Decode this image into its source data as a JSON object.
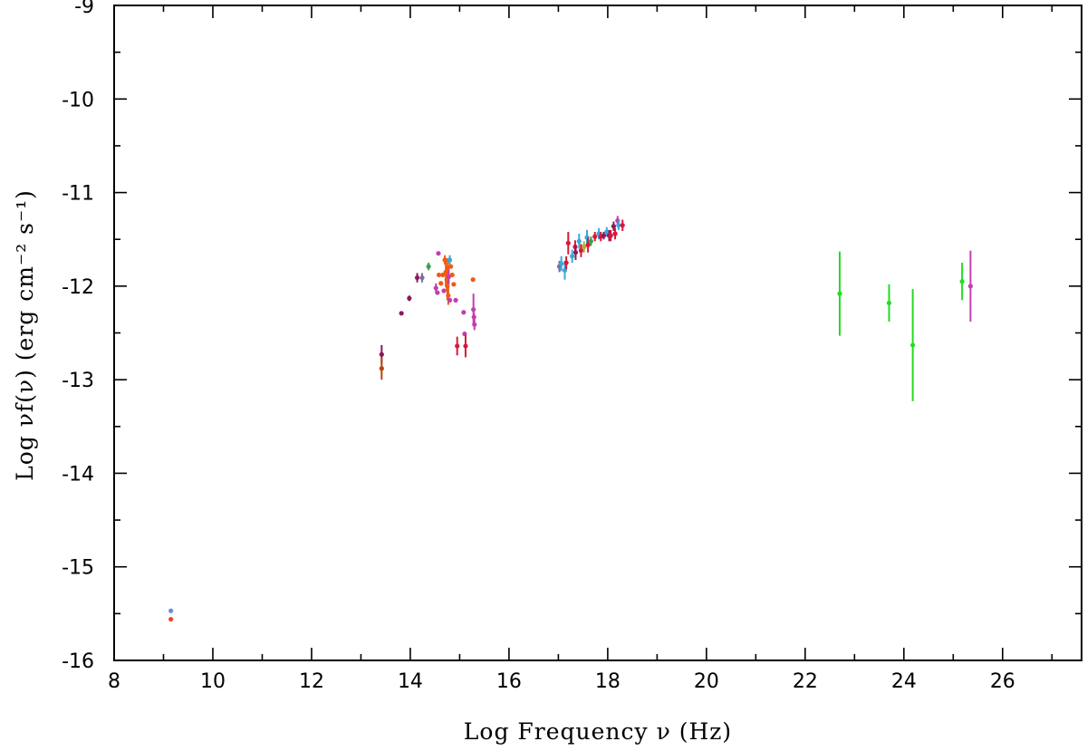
{
  "chart_data": {
    "type": "scatter",
    "title": "",
    "xlabel": "Log Frequency ν (Hz)",
    "ylabel": "Log νf(ν) (erg cm⁻² s⁻¹)",
    "xlim": [
      8,
      27.6
    ],
    "ylim": [
      -16,
      -9
    ],
    "x_major_ticks": [
      8,
      10,
      12,
      14,
      16,
      18,
      20,
      22,
      24,
      26
    ],
    "y_major_ticks": [
      -16,
      -15,
      -14,
      -13,
      -12,
      -11,
      -10,
      -9
    ],
    "x_minor_step": 1,
    "y_minor_step": 0.5,
    "grid": false,
    "points": [
      {
        "x": 9.15,
        "y": -15.47,
        "color": "#6a8fd8",
        "yerr": 0
      },
      {
        "x": 9.15,
        "y": -15.56,
        "color": "#e8452a",
        "yerr": 0
      },
      {
        "x": 13.42,
        "y": -12.73,
        "color": "#8b1a5a",
        "yerr": 0.1
      },
      {
        "x": 13.42,
        "y": -12.88,
        "color": "#b8440f",
        "yerr": 0.12
      },
      {
        "x": 13.82,
        "y": -12.29,
        "color": "#8b1a5a",
        "yerr": 0
      },
      {
        "x": 13.98,
        "y": -12.13,
        "color": "#8b1a5a",
        "yerr": 0.03
      },
      {
        "x": 14.14,
        "y": -11.91,
        "color": "#8b1a5a",
        "yerr": 0.05
      },
      {
        "x": 14.24,
        "y": -11.91,
        "color": "#7a6aa8",
        "yerr": 0.05
      },
      {
        "x": 14.37,
        "y": -11.79,
        "color": "#3aa050",
        "yerr": 0.04
      },
      {
        "x": 14.52,
        "y": -12.02,
        "color": "#c040b0",
        "yerr": 0.05
      },
      {
        "x": 14.55,
        "y": -12.07,
        "color": "#c040b0",
        "yerr": 0
      },
      {
        "x": 14.57,
        "y": -11.65,
        "color": "#c040b0",
        "yerr": 0
      },
      {
        "x": 14.58,
        "y": -11.88,
        "color": "#f05a14",
        "yerr": 0
      },
      {
        "x": 14.62,
        "y": -11.97,
        "color": "#f05a14",
        "yerr": 0
      },
      {
        "x": 14.66,
        "y": -11.88,
        "color": "#f05a14",
        "yerr": 0
      },
      {
        "x": 14.68,
        "y": -12.05,
        "color": "#c040b0",
        "yerr": 0
      },
      {
        "x": 14.7,
        "y": -11.72,
        "color": "#f05a14",
        "yerr": 0.05
      },
      {
        "x": 14.72,
        "y": -11.85,
        "color": "#f05a14",
        "yerr": 0.15
      },
      {
        "x": 14.74,
        "y": -11.93,
        "color": "#f05a14",
        "yerr": 0.12
      },
      {
        "x": 14.75,
        "y": -12.0,
        "color": "#f05a14",
        "yerr": 0.15
      },
      {
        "x": 14.76,
        "y": -11.8,
        "color": "#f05a14",
        "yerr": 0.1
      },
      {
        "x": 14.77,
        "y": -12.1,
        "color": "#f05a14",
        "yerr": 0.1
      },
      {
        "x": 14.78,
        "y": -11.9,
        "color": "#c040b0",
        "yerr": 0.08
      },
      {
        "x": 14.8,
        "y": -11.72,
        "color": "#38a8d8",
        "yerr": 0.05
      },
      {
        "x": 14.82,
        "y": -11.79,
        "color": "#f05a14",
        "yerr": 0
      },
      {
        "x": 14.8,
        "y": -12.15,
        "color": "#c040b0",
        "yerr": 0
      },
      {
        "x": 14.85,
        "y": -11.88,
        "color": "#f05a14",
        "yerr": 0
      },
      {
        "x": 14.88,
        "y": -11.98,
        "color": "#f05a14",
        "yerr": 0
      },
      {
        "x": 14.92,
        "y": -12.15,
        "color": "#c040b0",
        "yerr": 0
      },
      {
        "x": 14.95,
        "y": -12.64,
        "color": "#d8183a",
        "yerr": 0.1
      },
      {
        "x": 15.08,
        "y": -12.28,
        "color": "#c040b0",
        "yerr": 0
      },
      {
        "x": 15.1,
        "y": -12.51,
        "color": "#c040b0",
        "yerr": 0
      },
      {
        "x": 15.12,
        "y": -12.64,
        "color": "#d8183a",
        "yerr": 0.12
      },
      {
        "x": 15.27,
        "y": -11.93,
        "color": "#f05a14",
        "yerr": 0
      },
      {
        "x": 15.28,
        "y": -12.25,
        "color": "#c040b0",
        "yerr": 0.17
      },
      {
        "x": 15.29,
        "y": -12.33,
        "color": "#c040b0",
        "yerr": 0.05
      },
      {
        "x": 15.3,
        "y": -12.41,
        "color": "#c040b0",
        "yerr": 0.06
      },
      {
        "x": 17.02,
        "y": -11.79,
        "color": "#7a6aa8",
        "yerr": 0.06
      },
      {
        "x": 17.06,
        "y": -11.76,
        "color": "#38a8d8",
        "yerr": 0.08
      },
      {
        "x": 17.13,
        "y": -11.83,
        "color": "#38a8d8",
        "yerr": 0.1
      },
      {
        "x": 17.16,
        "y": -11.75,
        "color": "#d8183a",
        "yerr": 0.07
      },
      {
        "x": 17.2,
        "y": -11.54,
        "color": "#d8183a",
        "yerr": 0.12
      },
      {
        "x": 17.28,
        "y": -11.68,
        "color": "#38a8d8",
        "yerr": 0.07
      },
      {
        "x": 17.34,
        "y": -11.58,
        "color": "#d8183a",
        "yerr": 0.07
      },
      {
        "x": 17.35,
        "y": -11.64,
        "color": "#8b1a5a",
        "yerr": 0.08
      },
      {
        "x": 17.42,
        "y": -11.52,
        "color": "#38a8d8",
        "yerr": 0.08
      },
      {
        "x": 17.46,
        "y": -11.62,
        "color": "#d8183a",
        "yerr": 0.07
      },
      {
        "x": 17.52,
        "y": -11.58,
        "color": "#b0b030",
        "yerr": 0.06
      },
      {
        "x": 17.58,
        "y": -11.48,
        "color": "#38a8d8",
        "yerr": 0.08
      },
      {
        "x": 17.6,
        "y": -11.56,
        "color": "#d8183a",
        "yerr": 0.08
      },
      {
        "x": 17.66,
        "y": -11.52,
        "color": "#3aa050",
        "yerr": 0.05
      },
      {
        "x": 17.74,
        "y": -11.47,
        "color": "#d8183a",
        "yerr": 0.05
      },
      {
        "x": 17.82,
        "y": -11.44,
        "color": "#38a8d8",
        "yerr": 0.06
      },
      {
        "x": 17.86,
        "y": -11.47,
        "color": "#d8183a",
        "yerr": 0.05
      },
      {
        "x": 17.92,
        "y": -11.46,
        "color": "#8b1a5a",
        "yerr": 0.04
      },
      {
        "x": 17.98,
        "y": -11.42,
        "color": "#38a8d8",
        "yerr": 0.05
      },
      {
        "x": 18.03,
        "y": -11.46,
        "color": "#8b1a5a",
        "yerr": 0.06
      },
      {
        "x": 18.06,
        "y": -11.46,
        "color": "#d8183a",
        "yerr": 0.06
      },
      {
        "x": 18.12,
        "y": -11.36,
        "color": "#8b1a5a",
        "yerr": 0.05
      },
      {
        "x": 18.15,
        "y": -11.44,
        "color": "#d8183a",
        "yerr": 0.06
      },
      {
        "x": 18.2,
        "y": -11.3,
        "color": "#c040b0",
        "yerr": 0.05
      },
      {
        "x": 18.22,
        "y": -11.35,
        "color": "#38a8d8",
        "yerr": 0.05
      },
      {
        "x": 18.3,
        "y": -11.35,
        "color": "#d8183a",
        "yerr": 0.06
      },
      {
        "x": 22.7,
        "y": -12.08,
        "color": "#22dd22",
        "yerr": 0.45
      },
      {
        "x": 23.7,
        "y": -12.18,
        "color": "#22dd22",
        "yerr": 0.2
      },
      {
        "x": 24.18,
        "y": -12.63,
        "color": "#22dd22",
        "yerr": 0.6
      },
      {
        "x": 25.18,
        "y": -11.95,
        "color": "#22dd22",
        "yerr": 0.2
      },
      {
        "x": 25.35,
        "y": -12.0,
        "color": "#c040b0",
        "yerr": 0.38
      }
    ]
  }
}
